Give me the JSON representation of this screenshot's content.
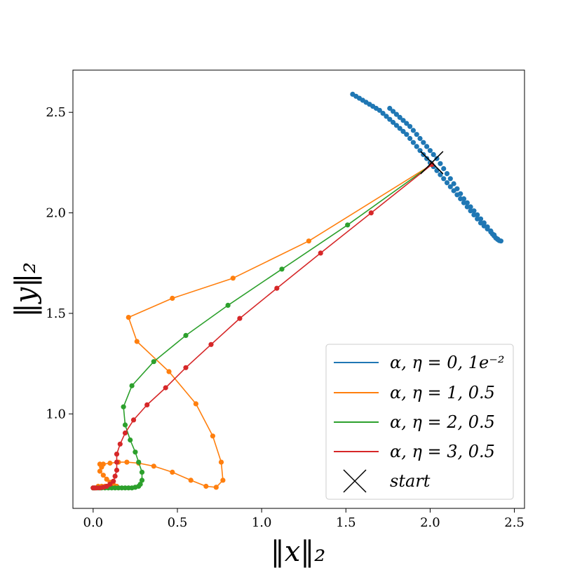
{
  "chart_data": {
    "type": "line",
    "xlabel": "‖x‖₂",
    "ylabel": "‖y‖₂",
    "xlim": [
      -0.12,
      2.56
    ],
    "ylim": [
      0.53,
      2.71
    ],
    "xticks": [
      "0.0",
      "0.5",
      "1.0",
      "1.5",
      "2.0",
      "2.5"
    ],
    "yticks": [
      "1.0",
      "1.5",
      "2.0",
      "2.5"
    ],
    "xtick_values": [
      0.0,
      0.5,
      1.0,
      1.5,
      2.0,
      2.5
    ],
    "ytick_values": [
      1.0,
      1.5,
      2.0,
      2.5
    ],
    "grid": false,
    "legend_position": "lower-right",
    "start": {
      "label": "start",
      "x": 2.01,
      "y": 2.25,
      "color": "#000000"
    },
    "series": [
      {
        "name": "α, η = 0, 1e⁻²",
        "color": "#1f77b4",
        "line": false,
        "x": [
          1.54,
          1.56,
          1.58,
          1.6,
          1.62,
          1.64,
          1.66,
          1.68,
          1.7,
          1.72,
          1.74,
          1.76,
          1.78,
          1.8,
          1.82,
          1.84,
          1.86,
          1.88,
          1.9,
          1.92,
          1.94,
          1.96,
          1.98,
          2.0,
          2.02,
          2.04,
          2.06,
          2.08,
          2.1,
          2.12,
          2.14,
          2.16,
          2.18,
          2.2,
          2.22,
          2.24,
          2.26,
          2.28,
          2.3,
          2.32,
          2.34,
          2.36,
          2.37,
          2.38,
          2.39,
          2.4,
          2.41,
          2.42,
          1.76,
          1.78,
          1.8,
          1.82,
          1.84,
          1.86,
          1.88,
          1.9,
          1.92,
          1.94,
          1.96,
          1.98,
          2.0,
          2.02,
          2.04,
          2.06,
          2.08,
          2.1,
          2.12,
          2.14,
          2.16,
          2.18,
          2.2,
          2.22,
          2.24,
          2.26,
          2.28,
          2.3,
          2.32,
          2.34,
          2.36,
          2.38,
          2.4
        ],
        "y": [
          2.59,
          2.58,
          2.57,
          2.56,
          2.55,
          2.54,
          2.53,
          2.52,
          2.51,
          2.495,
          2.48,
          2.465,
          2.45,
          2.435,
          2.42,
          2.405,
          2.39,
          2.37,
          2.35,
          2.33,
          2.31,
          2.29,
          2.27,
          2.25,
          2.23,
          2.21,
          2.19,
          2.17,
          2.15,
          2.13,
          2.11,
          2.09,
          2.07,
          2.05,
          2.03,
          2.01,
          1.99,
          1.97,
          1.95,
          1.935,
          1.92,
          1.905,
          1.895,
          1.885,
          1.875,
          1.868,
          1.862,
          1.86,
          2.52,
          2.505,
          2.49,
          2.475,
          2.46,
          2.445,
          2.43,
          2.41,
          2.39,
          2.37,
          2.35,
          2.33,
          2.31,
          2.29,
          2.27,
          2.245,
          2.22,
          2.195,
          2.17,
          2.145,
          2.12,
          2.095,
          2.07,
          2.05,
          2.03,
          2.01,
          1.99,
          1.97,
          1.95,
          1.93,
          1.91,
          1.89,
          1.87
        ]
      },
      {
        "name": "α, η = 1, 0.5",
        "color": "#ff7f0e",
        "line": true,
        "x": [
          2.01,
          1.28,
          0.83,
          0.47,
          0.21,
          0.26,
          0.45,
          0.61,
          0.71,
          0.76,
          0.77,
          0.73,
          0.67,
          0.58,
          0.47,
          0.36,
          0.27,
          0.2,
          0.15,
          0.1,
          0.06,
          0.04,
          0.05,
          0.04,
          0.06,
          0.08,
          0.1,
          0.12,
          0.14,
          0.13,
          0.11,
          0.09,
          0.07,
          0.05,
          0.03
        ],
        "y": [
          2.24,
          1.86,
          1.675,
          1.575,
          1.48,
          1.36,
          1.21,
          1.05,
          0.89,
          0.76,
          0.67,
          0.635,
          0.64,
          0.67,
          0.71,
          0.74,
          0.755,
          0.76,
          0.76,
          0.755,
          0.75,
          0.75,
          0.735,
          0.715,
          0.695,
          0.675,
          0.66,
          0.648,
          0.64,
          0.64,
          0.64,
          0.64,
          0.64,
          0.64,
          0.64
        ]
      },
      {
        "name": "α, η = 2, 0.5",
        "color": "#2ca02c",
        "line": true,
        "x": [
          2.01,
          1.51,
          1.12,
          0.8,
          0.55,
          0.36,
          0.23,
          0.18,
          0.19,
          0.22,
          0.25,
          0.27,
          0.29,
          0.29,
          0.28,
          0.27,
          0.25,
          0.23,
          0.21,
          0.19,
          0.17,
          0.15,
          0.13,
          0.11,
          0.09,
          0.07,
          0.05,
          0.03,
          0.01,
          0.0
        ],
        "y": [
          2.24,
          1.94,
          1.72,
          1.54,
          1.39,
          1.26,
          1.14,
          1.035,
          0.945,
          0.87,
          0.81,
          0.76,
          0.71,
          0.67,
          0.65,
          0.64,
          0.635,
          0.632,
          0.632,
          0.632,
          0.632,
          0.632,
          0.632,
          0.632,
          0.632,
          0.632,
          0.632,
          0.632,
          0.632,
          0.632
        ]
      },
      {
        "name": "α, η = 3, 0.5",
        "color": "#d62728",
        "line": true,
        "x": [
          2.01,
          1.65,
          1.35,
          1.09,
          0.87,
          0.7,
          0.55,
          0.43,
          0.32,
          0.24,
          0.19,
          0.16,
          0.14,
          0.14,
          0.14,
          0.13,
          0.12,
          0.1,
          0.08,
          0.06,
          0.04,
          0.02,
          0.01,
          0.0
        ],
        "y": [
          2.24,
          2.0,
          1.8,
          1.625,
          1.475,
          1.345,
          1.23,
          1.13,
          1.045,
          0.97,
          0.905,
          0.85,
          0.8,
          0.76,
          0.72,
          0.69,
          0.665,
          0.65,
          0.64,
          0.635,
          0.632,
          0.632,
          0.632,
          0.632
        ]
      }
    ]
  }
}
